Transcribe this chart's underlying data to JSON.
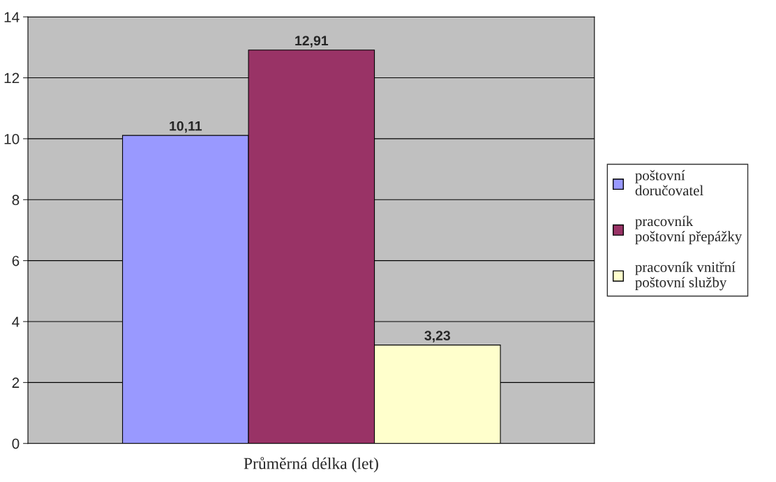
{
  "chart_data": {
    "type": "bar",
    "categories": [
      "Průměrná délka (let)"
    ],
    "series": [
      {
        "name": "poštovní doručovatel",
        "color": "#9999ff",
        "values": [
          10.11
        ],
        "value_labels": [
          "10,11"
        ]
      },
      {
        "name": "pracovník poštovní přepážky",
        "color": "#993366",
        "values": [
          12.91
        ],
        "value_labels": [
          "12,91"
        ]
      },
      {
        "name": "pracovník vnitřní poštovní služby",
        "color": "#ffffcc",
        "values": [
          3.23
        ],
        "value_labels": [
          "3,23"
        ]
      }
    ],
    "ylim": [
      0,
      14
    ],
    "yticks": [
      0,
      2,
      4,
      6,
      8,
      10,
      12,
      14
    ],
    "grid": "y",
    "legend": "right"
  }
}
